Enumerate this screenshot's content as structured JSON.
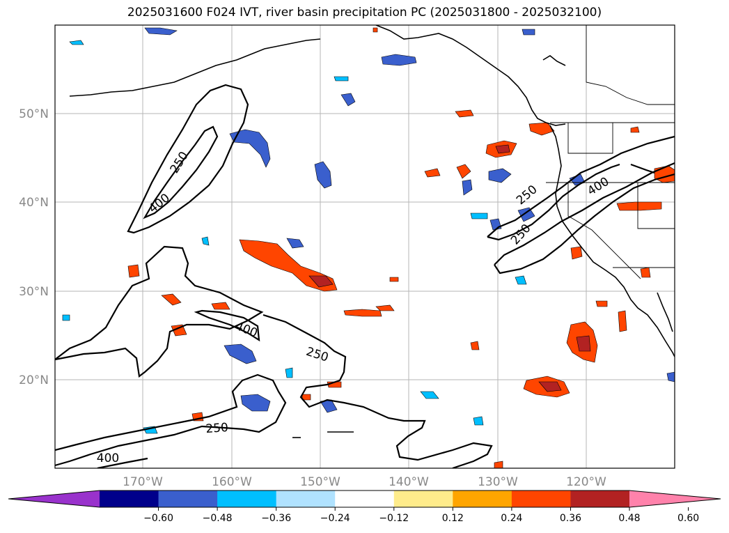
{
  "title": "2025031600 F024 IVT, river basin precipitation PC (2025031800 - 2025032100)",
  "map": {
    "lat_labels": [
      "50°N",
      "40°N",
      "30°N",
      "20°N"
    ],
    "lon_labels": [
      "170°W",
      "160°W",
      "150°W",
      "140°W",
      "130°W",
      "120°W"
    ],
    "ivt_contour_labels": [
      {
        "text": "250",
        "name": "ivt-label-250-nw"
      },
      {
        "text": "400",
        "name": "ivt-label-400-nw"
      },
      {
        "text": "400",
        "name": "ivt-label-400-central"
      },
      {
        "text": "250",
        "name": "ivt-label-250-central"
      },
      {
        "text": "250",
        "name": "ivt-label-250-south"
      },
      {
        "text": "400",
        "name": "ivt-label-400-southwest"
      },
      {
        "text": "250",
        "name": "ivt-label-250-coast-a"
      },
      {
        "text": "250",
        "name": "ivt-label-250-coast-b"
      },
      {
        "text": "400",
        "name": "ivt-label-400-coast"
      }
    ]
  },
  "colorbar": {
    "ticks": [
      "−0.60",
      "−0.48",
      "−0.36",
      "−0.24",
      "−0.12",
      "0.12",
      "0.24",
      "0.36",
      "0.48",
      "0.60"
    ],
    "colors": [
      "#9932CC",
      "#00008B",
      "#3A5FCD",
      "#00BFFF",
      "#B0E2FF",
      "#FFFFFF",
      "#FFEC8B",
      "#FFA500",
      "#FF4500",
      "#B22222",
      "#FF82AB"
    ]
  }
}
